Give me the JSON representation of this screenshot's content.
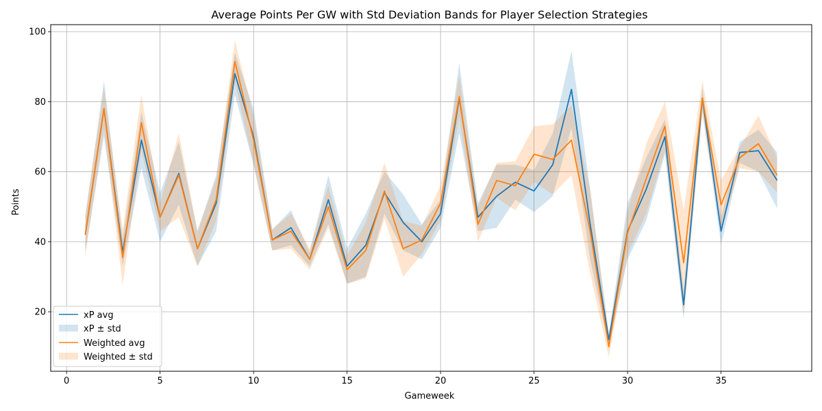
{
  "chart_data": {
    "type": "line",
    "title": "Average Points Per GW with Std Deviation Bands for Player Selection Strategies",
    "xlabel": "Gameweek",
    "ylabel": "Points",
    "xlim": [
      -0.85,
      39.85
    ],
    "ylim": [
      3.0,
      102.0
    ],
    "xticks": [
      0,
      5,
      10,
      15,
      20,
      25,
      30,
      35
    ],
    "yticks": [
      20,
      40,
      60,
      80,
      100
    ],
    "grid": true,
    "legend_position": "lower-left",
    "x": [
      1,
      2,
      3,
      4,
      5,
      6,
      7,
      8,
      9,
      10,
      11,
      12,
      13,
      14,
      15,
      16,
      17,
      18,
      19,
      20,
      21,
      22,
      23,
      24,
      25,
      26,
      27,
      28,
      29,
      30,
      31,
      32,
      33,
      34,
      35,
      36,
      37,
      38
    ],
    "series": [
      {
        "name": "xP avg",
        "band_name": "xP ± std",
        "color": "#1f77b4",
        "band_color": "#1f77b4",
        "values": [
          42,
          78,
          37,
          69,
          47,
          59.5,
          38,
          51,
          88,
          70,
          40.5,
          44,
          35,
          52,
          33,
          39,
          54,
          45.5,
          40,
          48,
          81,
          47,
          53,
          57,
          54.5,
          62,
          83.5,
          45,
          12,
          43,
          55,
          70,
          22,
          81,
          43,
          65.5,
          66,
          57.5
        ],
        "std": [
          5,
          8,
          4,
          8,
          7,
          9,
          5,
          8,
          6,
          8,
          3,
          5,
          2,
          7,
          5,
          9,
          6,
          8,
          5,
          4,
          10,
          4,
          9,
          5,
          6,
          9,
          11,
          10,
          2,
          8,
          9,
          5,
          4,
          3,
          4,
          3,
          6,
          8
        ]
      },
      {
        "name": "Weighted avg",
        "band_name": "Weighted ± std",
        "color": "#ff7f0e",
        "band_color": "#ff7f0e",
        "values": [
          42,
          78,
          35.5,
          74,
          47,
          59,
          38,
          52,
          91.5,
          69,
          40.5,
          43,
          35,
          50,
          32,
          37.5,
          54.5,
          38,
          40.5,
          51,
          81.5,
          45,
          57.5,
          56,
          65,
          63.5,
          69,
          43,
          10,
          42.5,
          58,
          73,
          34,
          81,
          50.5,
          64,
          68,
          59
        ],
        "std": [
          6,
          6,
          8,
          8,
          4,
          12,
          5,
          6,
          6,
          7,
          3,
          5,
          3,
          6,
          4,
          8,
          8,
          8,
          4,
          5,
          6,
          5,
          5,
          7,
          8,
          10,
          10,
          12,
          3,
          6,
          10,
          7,
          15,
          5,
          7,
          3,
          8,
          5
        ]
      }
    ]
  }
}
